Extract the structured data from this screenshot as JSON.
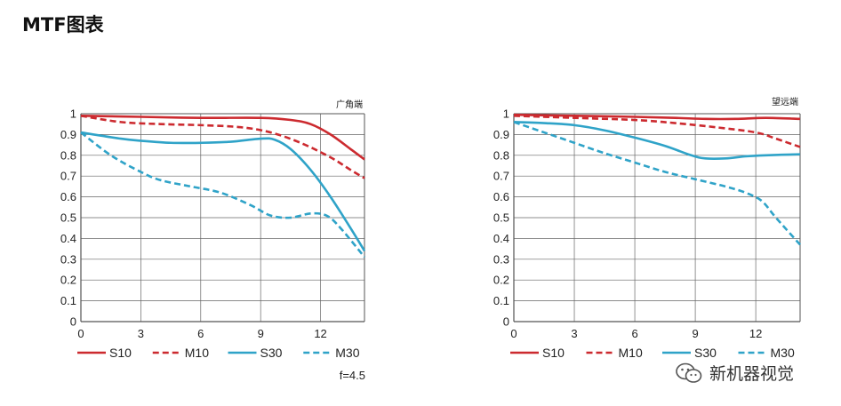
{
  "page": {
    "title": "MTF图表"
  },
  "watermark": {
    "text": "新机器视觉",
    "icon": "wechat-icon"
  },
  "colors": {
    "red": "#cc2a2f",
    "blue": "#2fa3c8",
    "axis": "#555555",
    "grid": "#666666"
  },
  "chart_data": [
    {
      "type": "line",
      "title": "广角端",
      "note": "f=4.5",
      "xlim": [
        0,
        14.2
      ],
      "ylim": [
        0,
        1
      ],
      "x_ticks": [
        0,
        3,
        6,
        9,
        12
      ],
      "y_ticks": [
        0,
        0.1,
        0.2,
        0.3,
        0.4,
        0.5,
        0.6,
        0.7,
        0.8,
        0.9,
        1
      ],
      "grid": true,
      "legend": "bottom",
      "series": [
        {
          "name": "S10",
          "color": "red",
          "dashed": false,
          "points": [
            [
              0,
              0.99
            ],
            [
              3,
              0.985
            ],
            [
              6,
              0.98
            ],
            [
              9,
              0.98
            ],
            [
              10.5,
              0.97
            ],
            [
              11.5,
              0.95
            ],
            [
              12.5,
              0.9
            ],
            [
              13.5,
              0.83
            ],
            [
              14.2,
              0.78
            ]
          ]
        },
        {
          "name": "M10",
          "color": "red",
          "dashed": true,
          "points": [
            [
              0,
              0.99
            ],
            [
              2,
              0.96
            ],
            [
              4,
              0.95
            ],
            [
              6,
              0.945
            ],
            [
              8,
              0.935
            ],
            [
              9.5,
              0.91
            ],
            [
              11,
              0.86
            ],
            [
              12.5,
              0.79
            ],
            [
              13.5,
              0.73
            ],
            [
              14.2,
              0.69
            ]
          ]
        },
        {
          "name": "S30",
          "color": "blue",
          "dashed": false,
          "points": [
            [
              0,
              0.91
            ],
            [
              2,
              0.88
            ],
            [
              3,
              0.87
            ],
            [
              4.5,
              0.86
            ],
            [
              6,
              0.86
            ],
            [
              7.5,
              0.865
            ],
            [
              9,
              0.88
            ],
            [
              9.7,
              0.875
            ],
            [
              10.5,
              0.83
            ],
            [
              11.5,
              0.73
            ],
            [
              12.5,
              0.6
            ],
            [
              13.5,
              0.45
            ],
            [
              14.2,
              0.34
            ]
          ]
        },
        {
          "name": "M30",
          "color": "blue",
          "dashed": true,
          "points": [
            [
              0,
              0.91
            ],
            [
              1.5,
              0.8
            ],
            [
              3,
              0.72
            ],
            [
              4,
              0.68
            ],
            [
              5.5,
              0.65
            ],
            [
              7,
              0.62
            ],
            [
              8.5,
              0.56
            ],
            [
              9.5,
              0.51
            ],
            [
              10.5,
              0.5
            ],
            [
              11.5,
              0.52
            ],
            [
              12.3,
              0.51
            ],
            [
              13,
              0.45
            ],
            [
              14.2,
              0.31
            ]
          ]
        }
      ]
    },
    {
      "type": "line",
      "title": "望远端",
      "xlim": [
        0,
        14.2
      ],
      "ylim": [
        0,
        1
      ],
      "x_ticks": [
        0,
        3,
        6,
        9,
        12
      ],
      "y_ticks": [
        0,
        0.1,
        0.2,
        0.3,
        0.4,
        0.5,
        0.6,
        0.7,
        0.8,
        0.9,
        1
      ],
      "grid": true,
      "legend": "bottom",
      "series": [
        {
          "name": "S10",
          "color": "red",
          "dashed": false,
          "points": [
            [
              0,
              0.995
            ],
            [
              3,
              0.99
            ],
            [
              6,
              0.985
            ],
            [
              8,
              0.98
            ],
            [
              9.5,
              0.975
            ],
            [
              11,
              0.975
            ],
            [
              12.5,
              0.98
            ],
            [
              14.2,
              0.975
            ]
          ]
        },
        {
          "name": "M10",
          "color": "red",
          "dashed": true,
          "points": [
            [
              0,
              0.99
            ],
            [
              3,
              0.98
            ],
            [
              6,
              0.97
            ],
            [
              8,
              0.955
            ],
            [
              10,
              0.935
            ],
            [
              12,
              0.91
            ],
            [
              13,
              0.88
            ],
            [
              14.2,
              0.84
            ]
          ]
        },
        {
          "name": "S30",
          "color": "blue",
          "dashed": false,
          "points": [
            [
              0,
              0.96
            ],
            [
              1.5,
              0.955
            ],
            [
              3,
              0.945
            ],
            [
              4.5,
              0.92
            ],
            [
              6,
              0.885
            ],
            [
              7.5,
              0.845
            ],
            [
              8.8,
              0.8
            ],
            [
              9.5,
              0.785
            ],
            [
              10.5,
              0.785
            ],
            [
              11.5,
              0.795
            ],
            [
              12.5,
              0.8
            ],
            [
              14.2,
              0.805
            ]
          ]
        },
        {
          "name": "M30",
          "color": "blue",
          "dashed": true,
          "points": [
            [
              0,
              0.96
            ],
            [
              1.5,
              0.91
            ],
            [
              3,
              0.86
            ],
            [
              4.5,
              0.81
            ],
            [
              6,
              0.765
            ],
            [
              7.5,
              0.72
            ],
            [
              9,
              0.685
            ],
            [
              10.5,
              0.65
            ],
            [
              11.5,
              0.62
            ],
            [
              12.3,
              0.58
            ],
            [
              13,
              0.5
            ],
            [
              14.2,
              0.37
            ]
          ]
        }
      ]
    }
  ]
}
